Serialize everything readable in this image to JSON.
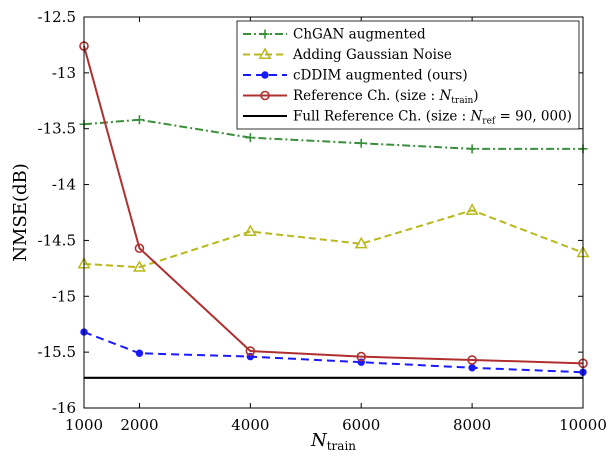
{
  "chart_data": {
    "type": "line",
    "xlabel_main": "N",
    "xlabel_sub": "train",
    "ylabel": "NMSE(dB)",
    "xlim": [
      1000,
      10000
    ],
    "ylim": [
      -16,
      -12.5
    ],
    "xticks": [
      1000,
      2000,
      4000,
      6000,
      8000,
      10000
    ],
    "yticks": [
      -16,
      -15.5,
      -15,
      -14.5,
      -14,
      -13.5,
      -13,
      -12.5
    ],
    "x": [
      1000,
      2000,
      4000,
      6000,
      8000,
      10000
    ],
    "legend_position": "top-right",
    "grid": false,
    "series": [
      {
        "key": "chgan",
        "name": "ChGAN augmented",
        "color": "#3a8f3a",
        "marker": "plus",
        "dash": "8,3,2,3",
        "values": [
          -13.46,
          -13.42,
          -13.58,
          -13.63,
          -13.68,
          -13.68
        ]
      },
      {
        "key": "noise",
        "name": "Adding Gaussian Noise",
        "color": "#b8b81c",
        "marker": "triangle",
        "dash": "7,4",
        "values": [
          -14.71,
          -14.74,
          -14.42,
          -14.53,
          -14.23,
          -14.61
        ]
      },
      {
        "key": "cddim",
        "name": "cDDIM augmented (ours)",
        "color": "#1a1aff",
        "marker": "dot",
        "dash": "8,5",
        "values": [
          -15.32,
          -15.51,
          -15.54,
          -15.59,
          -15.64,
          -15.68
        ]
      },
      {
        "key": "ref",
        "name_main": "Reference Ch. (size : ",
        "name_var": "N",
        "name_sub": "train",
        "name_end": ")",
        "color": "#b03030",
        "marker": "circle",
        "dash": "",
        "values": [
          -12.76,
          -14.57,
          -15.49,
          -15.54,
          -15.57,
          -15.6
        ]
      },
      {
        "key": "full",
        "name_main": "Full Reference Ch. (size : ",
        "name_var": "N",
        "name_sub": "ref",
        "name_end": " = 90, 000)",
        "color": "#000000",
        "marker": "none",
        "dash": "",
        "values": [
          -15.73,
          -15.73,
          -15.73,
          -15.73,
          -15.73,
          -15.73
        ]
      }
    ]
  }
}
